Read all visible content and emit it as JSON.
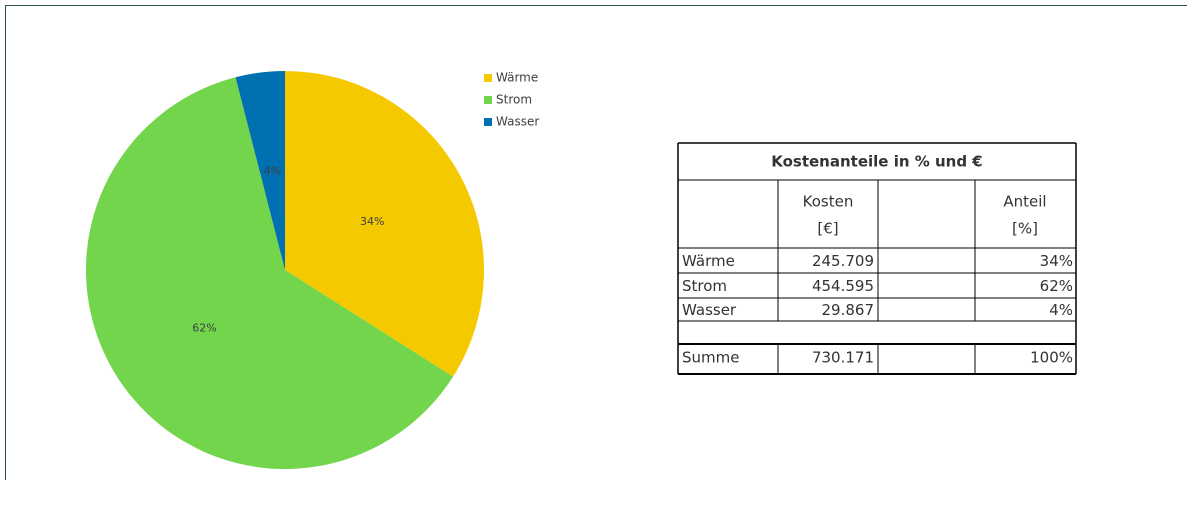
{
  "chart_data": {
    "type": "pie",
    "categories": [
      "Wärme",
      "Strom",
      "Wasser"
    ],
    "values": [
      34,
      62,
      4
    ],
    "value_labels": [
      "34%",
      "62%",
      "4%"
    ],
    "colors": [
      "#f5c900",
      "#72d54c",
      "#0070b0"
    ],
    "legend": "right"
  },
  "table": {
    "title": "Kostenanteile in % und €",
    "header": {
      "kosten": [
        "Kosten",
        "[€]"
      ],
      "anteil": [
        "Anteil",
        "[%]"
      ]
    },
    "rows": [
      [
        "Wärme",
        "245.709",
        "34%"
      ],
      [
        "Strom",
        "454.595",
        "62%"
      ],
      [
        "Wasser",
        "29.867",
        "4%"
      ]
    ],
    "total": [
      "Summe",
      "730.171",
      "100%"
    ]
  }
}
